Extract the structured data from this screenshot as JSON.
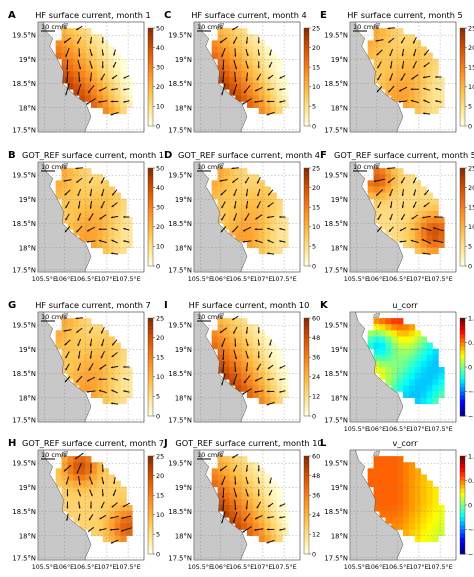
{
  "figure": {
    "panels": [
      {
        "letter": "A",
        "title": "HF surface current, month 1",
        "kind": "current",
        "pattern": "hf",
        "scale_label": "10 cm/s",
        "cbar_ticks": [
          "50",
          "40",
          "30",
          "20",
          "10",
          "0"
        ]
      },
      {
        "letter": "C",
        "title": "HF surface current, month 4",
        "kind": "current",
        "pattern": "hf",
        "scale_label": "10 cm/s",
        "cbar_ticks": [
          "25",
          "20",
          "15",
          "10",
          "5",
          "0"
        ]
      },
      {
        "letter": "E",
        "title": "HF surface current, month 5",
        "kind": "current",
        "pattern": "mild",
        "scale_label": "10 cm/s",
        "cbar_ticks": [
          "25",
          "20",
          "15",
          "10",
          "5",
          "0"
        ]
      },
      {
        "letter": "B",
        "title": "GOT_REF surface current, month 1",
        "kind": "current",
        "pattern": "mild",
        "scale_label": "10 cm/s",
        "cbar_ticks": [
          "50",
          "40",
          "30",
          "20",
          "10",
          "0"
        ]
      },
      {
        "letter": "D",
        "title": "GOT_REF surface current, month 4",
        "kind": "current",
        "pattern": "mild",
        "scale_label": "10 cm/s",
        "cbar_ticks": [
          "25",
          "20",
          "15",
          "10",
          "5",
          "0"
        ]
      },
      {
        "letter": "F",
        "title": "GOT_REF surface current, month 5",
        "kind": "current",
        "pattern": "got5",
        "scale_label": "10 cm/s",
        "cbar_ticks": [
          "25",
          "20",
          "15",
          "10",
          "5",
          "0"
        ]
      },
      {
        "letter": "G",
        "title": "HF surface current, month 7",
        "kind": "current",
        "pattern": "mild",
        "scale_label": "10 cm/s",
        "cbar_ticks": [
          "25",
          "20",
          "15",
          "10",
          "5",
          "0"
        ]
      },
      {
        "letter": "I",
        "title": "HF surface current, month 10",
        "kind": "current",
        "pattern": "hf",
        "scale_label": "10 cm/s",
        "cbar_ticks": [
          "60",
          "48",
          "36",
          "24",
          "12",
          "0"
        ]
      },
      {
        "letter": "K",
        "title": "u_corr",
        "kind": "corr",
        "pattern": "u",
        "scale_label": "",
        "cbar_ticks": [
          "1.0",
          "0.5",
          "0",
          "−0.5",
          "−1.0"
        ]
      },
      {
        "letter": "H",
        "title": "GOT_REF surface current, month 7",
        "kind": "current",
        "pattern": "got7",
        "scale_label": "10 cm/s",
        "cbar_ticks": [
          "25",
          "20",
          "15",
          "10",
          "5",
          "0"
        ]
      },
      {
        "letter": "J",
        "title": "GOT_REF surface current, month 10",
        "kind": "current",
        "pattern": "hf",
        "scale_label": "10 cm/s",
        "cbar_ticks": [
          "60",
          "48",
          "36",
          "24",
          "12",
          "0"
        ]
      },
      {
        "letter": "L",
        "title": "v_corr",
        "kind": "corr",
        "pattern": "v",
        "scale_label": "",
        "cbar_ticks": [
          "1.0",
          "0.5",
          "0",
          "−0.5",
          "−1.0"
        ]
      }
    ],
    "lat_labels": [
      "19.5°N",
      "19°N",
      "18.5°N",
      "18°N",
      "17.5°N"
    ],
    "lon_labels": [
      "105.5°E",
      "106°E",
      "106.5°E",
      "107°E",
      "107.5°E"
    ],
    "lon_labels_corr": [
      "105.5°E",
      "106°E",
      "106.5°E",
      "107°E",
      "107.5°E"
    ],
    "colors": {
      "land": "#c8c8c8",
      "sea": "#ffffff",
      "arrow": "#111111"
    }
  }
}
